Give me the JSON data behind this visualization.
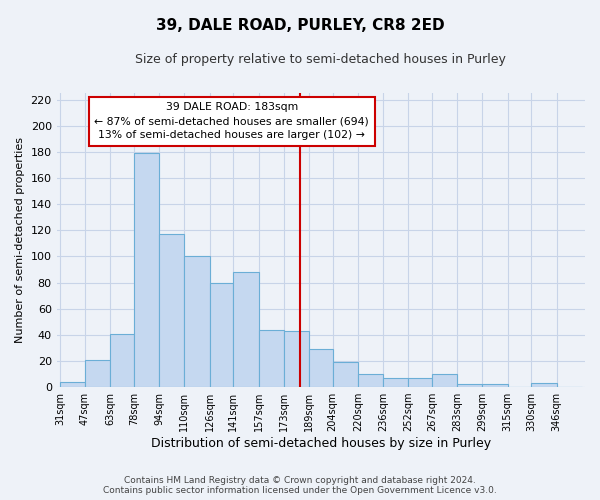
{
  "title": "39, DALE ROAD, PURLEY, CR8 2ED",
  "subtitle": "Size of property relative to semi-detached houses in Purley",
  "xlabel": "Distribution of semi-detached houses by size in Purley",
  "ylabel": "Number of semi-detached properties",
  "categories": [
    "31sqm",
    "47sqm",
    "63sqm",
    "78sqm",
    "94sqm",
    "110sqm",
    "126sqm",
    "141sqm",
    "157sqm",
    "173sqm",
    "189sqm",
    "204sqm",
    "220sqm",
    "236sqm",
    "252sqm",
    "267sqm",
    "283sqm",
    "299sqm",
    "315sqm",
    "330sqm",
    "346sqm"
  ],
  "values": [
    4,
    21,
    41,
    179,
    117,
    100,
    80,
    88,
    44,
    43,
    29,
    19,
    10,
    7,
    7,
    10,
    2,
    2,
    0,
    3,
    0
  ],
  "bar_color": "#c5d8f0",
  "bar_edge_color": "#6baed6",
  "grid_color": "#c8d4e8",
  "background_color": "#eef2f8",
  "property_line_color": "#cc0000",
  "annotation_text_line1": "39 DALE ROAD: 183sqm",
  "annotation_text_line2": "← 87% of semi-detached houses are smaller (694)",
  "annotation_text_line3": "13% of semi-detached houses are larger (102) →",
  "annotation_box_color": "#ffffff",
  "annotation_box_edge": "#cc0000",
  "ylim": [
    0,
    225
  ],
  "yticks": [
    0,
    20,
    40,
    60,
    80,
    100,
    120,
    140,
    160,
    180,
    200,
    220
  ],
  "footer_line1": "Contains HM Land Registry data © Crown copyright and database right 2024.",
  "footer_line2": "Contains public sector information licensed under the Open Government Licence v3.0.",
  "prop_sqm": 183,
  "bin_edges": [
    31,
    47,
    63,
    78,
    94,
    110,
    126,
    141,
    157,
    173,
    189,
    204,
    220,
    236,
    252,
    267,
    283,
    299,
    315,
    330,
    346,
    362
  ]
}
